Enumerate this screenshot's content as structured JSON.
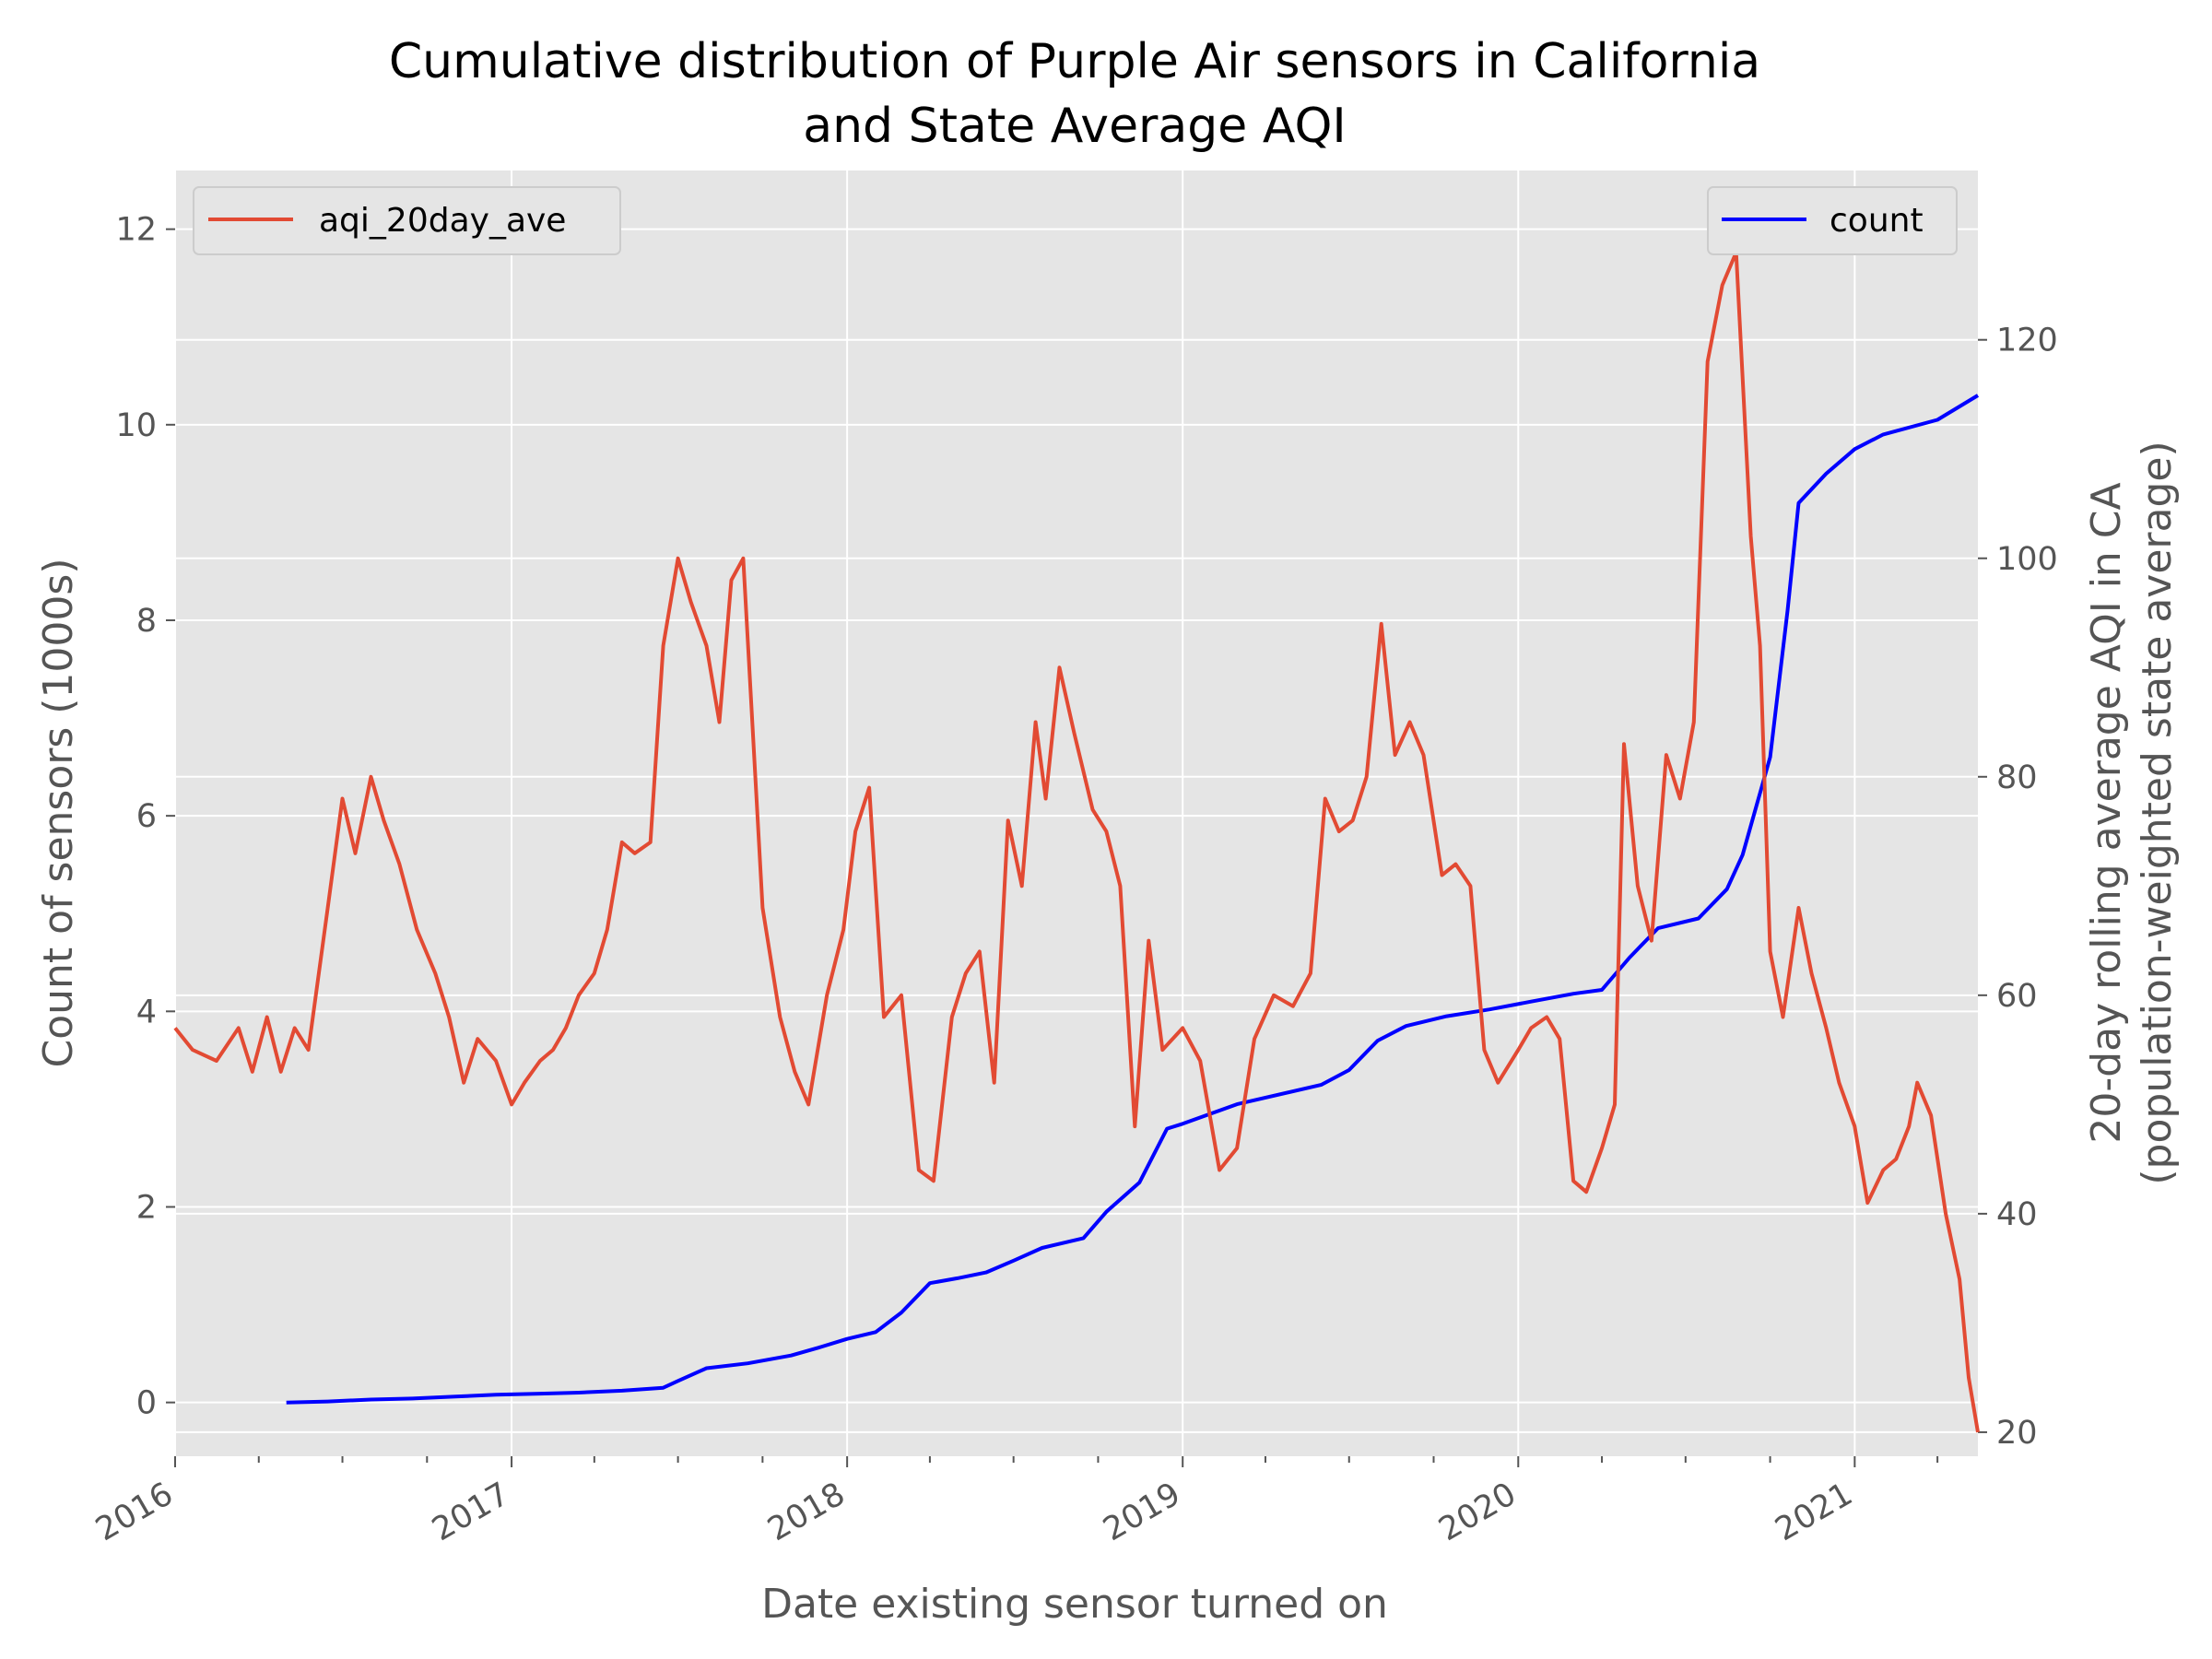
{
  "chart_data": {
    "type": "line",
    "title_line1": "Cumulative distribution of Purple Air sensors in California",
    "title_line2": "and State Average AQI",
    "xlabel": "Date existing sensor turned on",
    "ylabel_left": "Count of sensors (1000s)",
    "ylabel_right_line1": "20-day rolling average AQI in CA",
    "ylabel_right_line2": "(population-weighted state average)",
    "x_ticks": [
      "2016",
      "2017",
      "2018",
      "2019",
      "2020",
      "2021"
    ],
    "xlim": [
      "2016-01-01",
      "2021-05-15"
    ],
    "ylim_left": [
      -0.55,
      12.6
    ],
    "ylim_right": [
      17.8,
      135.5
    ],
    "yticks_left": [
      "0",
      "2",
      "4",
      "6",
      "8",
      "10",
      "12"
    ],
    "yticks_right": [
      "20",
      "40",
      "60",
      "80",
      "100",
      "120"
    ],
    "grid": true,
    "colors": {
      "aqi": "#E24A33",
      "count": "#0000FF",
      "plot_bg": "#E5E5E5",
      "grid": "#FFFFFF"
    },
    "legends": {
      "left_position": "upper left",
      "right_position": "upper right"
    },
    "series": [
      {
        "name": "count",
        "axis": "left",
        "x": [
          "2016-05-01",
          "2016-06-15",
          "2016-08-01",
          "2016-09-15",
          "2016-11-01",
          "2016-12-15",
          "2017-02-01",
          "2017-03-15",
          "2017-05-01",
          "2017-06-15",
          "2017-07-01",
          "2017-08-01",
          "2017-09-15",
          "2017-11-01",
          "2017-12-01",
          "2018-01-01",
          "2018-02-01",
          "2018-03-01",
          "2018-04-01",
          "2018-05-01",
          "2018-06-01",
          "2018-07-01",
          "2018-08-01",
          "2018-09-15",
          "2018-10-10",
          "2018-11-15",
          "2018-12-15",
          "2019-01-01",
          "2019-03-01",
          "2019-06-01",
          "2019-07-01",
          "2019-08-01",
          "2019-09-01",
          "2019-10-15",
          "2019-12-01",
          "2020-01-15",
          "2020-03-01",
          "2020-04-01",
          "2020-05-01",
          "2020-06-01",
          "2020-07-15",
          "2020-08-15",
          "2020-09-01",
          "2020-10-01",
          "2020-10-20",
          "2020-11-01",
          "2020-12-01",
          "2021-01-01",
          "2021-02-01",
          "2021-04-01",
          "2021-05-15"
        ],
        "values": [
          0.0,
          0.01,
          0.03,
          0.04,
          0.06,
          0.08,
          0.09,
          0.1,
          0.12,
          0.15,
          0.22,
          0.35,
          0.4,
          0.48,
          0.56,
          0.65,
          0.72,
          0.92,
          1.22,
          1.27,
          1.33,
          1.45,
          1.58,
          1.68,
          1.95,
          2.25,
          2.8,
          2.85,
          3.05,
          3.25,
          3.4,
          3.7,
          3.85,
          3.95,
          4.02,
          4.1,
          4.18,
          4.22,
          4.55,
          4.85,
          4.95,
          5.25,
          5.6,
          6.6,
          8.1,
          9.2,
          9.5,
          9.75,
          9.9,
          10.05,
          10.3
        ]
      },
      {
        "name": "aqi_20day_ave",
        "axis": "right",
        "x": [
          "2016-01-01",
          "2016-01-20",
          "2016-02-15",
          "2016-03-10",
          "2016-03-25",
          "2016-04-10",
          "2016-04-25",
          "2016-05-10",
          "2016-05-25",
          "2016-06-15",
          "2016-07-01",
          "2016-07-15",
          "2016-08-01",
          "2016-08-15",
          "2016-09-01",
          "2016-09-20",
          "2016-10-10",
          "2016-10-25",
          "2016-11-10",
          "2016-11-25",
          "2016-12-15",
          "2017-01-01",
          "2017-01-15",
          "2017-02-01",
          "2017-02-15",
          "2017-03-01",
          "2017-03-15",
          "2017-04-01",
          "2017-04-15",
          "2017-05-01",
          "2017-05-15",
          "2017-06-01",
          "2017-06-15",
          "2017-07-01",
          "2017-07-15",
          "2017-08-01",
          "2017-08-15",
          "2017-08-28",
          "2017-09-10",
          "2017-10-01",
          "2017-10-20",
          "2017-11-05",
          "2017-11-20",
          "2017-12-10",
          "2017-12-28",
          "2018-01-10",
          "2018-01-25",
          "2018-02-10",
          "2018-03-01",
          "2018-03-20",
          "2018-04-05",
          "2018-04-25",
          "2018-05-10",
          "2018-05-25",
          "2018-06-10",
          "2018-06-25",
          "2018-07-10",
          "2018-07-25",
          "2018-08-05",
          "2018-08-20",
          "2018-09-05",
          "2018-09-25",
          "2018-10-10",
          "2018-10-25",
          "2018-11-10",
          "2018-11-25",
          "2018-12-10",
          "2019-01-01",
          "2019-01-20",
          "2019-02-10",
          "2019-03-01",
          "2019-03-20",
          "2019-04-10",
          "2019-05-01",
          "2019-05-20",
          "2019-06-05",
          "2019-06-20",
          "2019-07-05",
          "2019-07-20",
          "2019-08-05",
          "2019-08-20",
          "2019-09-05",
          "2019-09-20",
          "2019-10-10",
          "2019-10-25",
          "2019-11-10",
          "2019-11-25",
          "2019-12-10",
          "2020-01-01",
          "2020-01-15",
          "2020-02-01",
          "2020-02-15",
          "2020-03-01",
          "2020-03-15",
          "2020-04-01",
          "2020-04-15",
          "2020-04-25",
          "2020-05-10",
          "2020-05-25",
          "2020-06-10",
          "2020-06-25",
          "2020-07-10",
          "2020-07-25",
          "2020-08-10",
          "2020-08-25",
          "2020-09-10",
          "2020-09-20",
          "2020-10-01",
          "2020-10-15",
          "2020-11-01",
          "2020-11-15",
          "2020-12-01",
          "2020-12-15",
          "2021-01-01",
          "2021-01-15",
          "2021-02-01",
          "2021-02-15",
          "2021-03-01",
          "2021-03-10",
          "2021-03-25",
          "2021-04-10",
          "2021-04-25",
          "2021-05-05",
          "2021-05-15"
        ],
        "values": [
          57,
          55,
          54,
          57,
          53,
          58,
          53,
          57,
          55,
          68,
          78,
          73,
          80,
          76,
          72,
          66,
          62,
          58,
          52,
          56,
          54,
          50,
          52,
          54,
          55,
          57,
          60,
          62,
          66,
          74,
          73,
          74,
          92,
          100,
          96,
          92,
          85,
          98,
          100,
          68,
          58,
          53,
          50,
          60,
          66,
          75,
          79,
          58,
          60,
          44,
          43,
          58,
          62,
          64,
          52,
          76,
          70,
          85,
          78,
          90,
          84,
          77,
          75,
          70,
          48,
          65,
          55,
          57,
          54,
          44,
          46,
          56,
          60,
          59,
          62,
          78,
          75,
          76,
          80,
          94,
          82,
          85,
          82,
          71,
          72,
          70,
          55,
          52,
          55,
          57,
          58,
          56,
          43,
          42,
          46,
          50,
          83,
          70,
          65,
          82,
          78,
          85,
          118,
          125,
          128,
          102,
          92,
          64,
          58,
          68,
          62,
          57,
          52,
          48,
          41,
          44,
          45,
          48,
          52,
          49,
          40,
          34,
          25,
          20
        ]
      }
    ]
  }
}
